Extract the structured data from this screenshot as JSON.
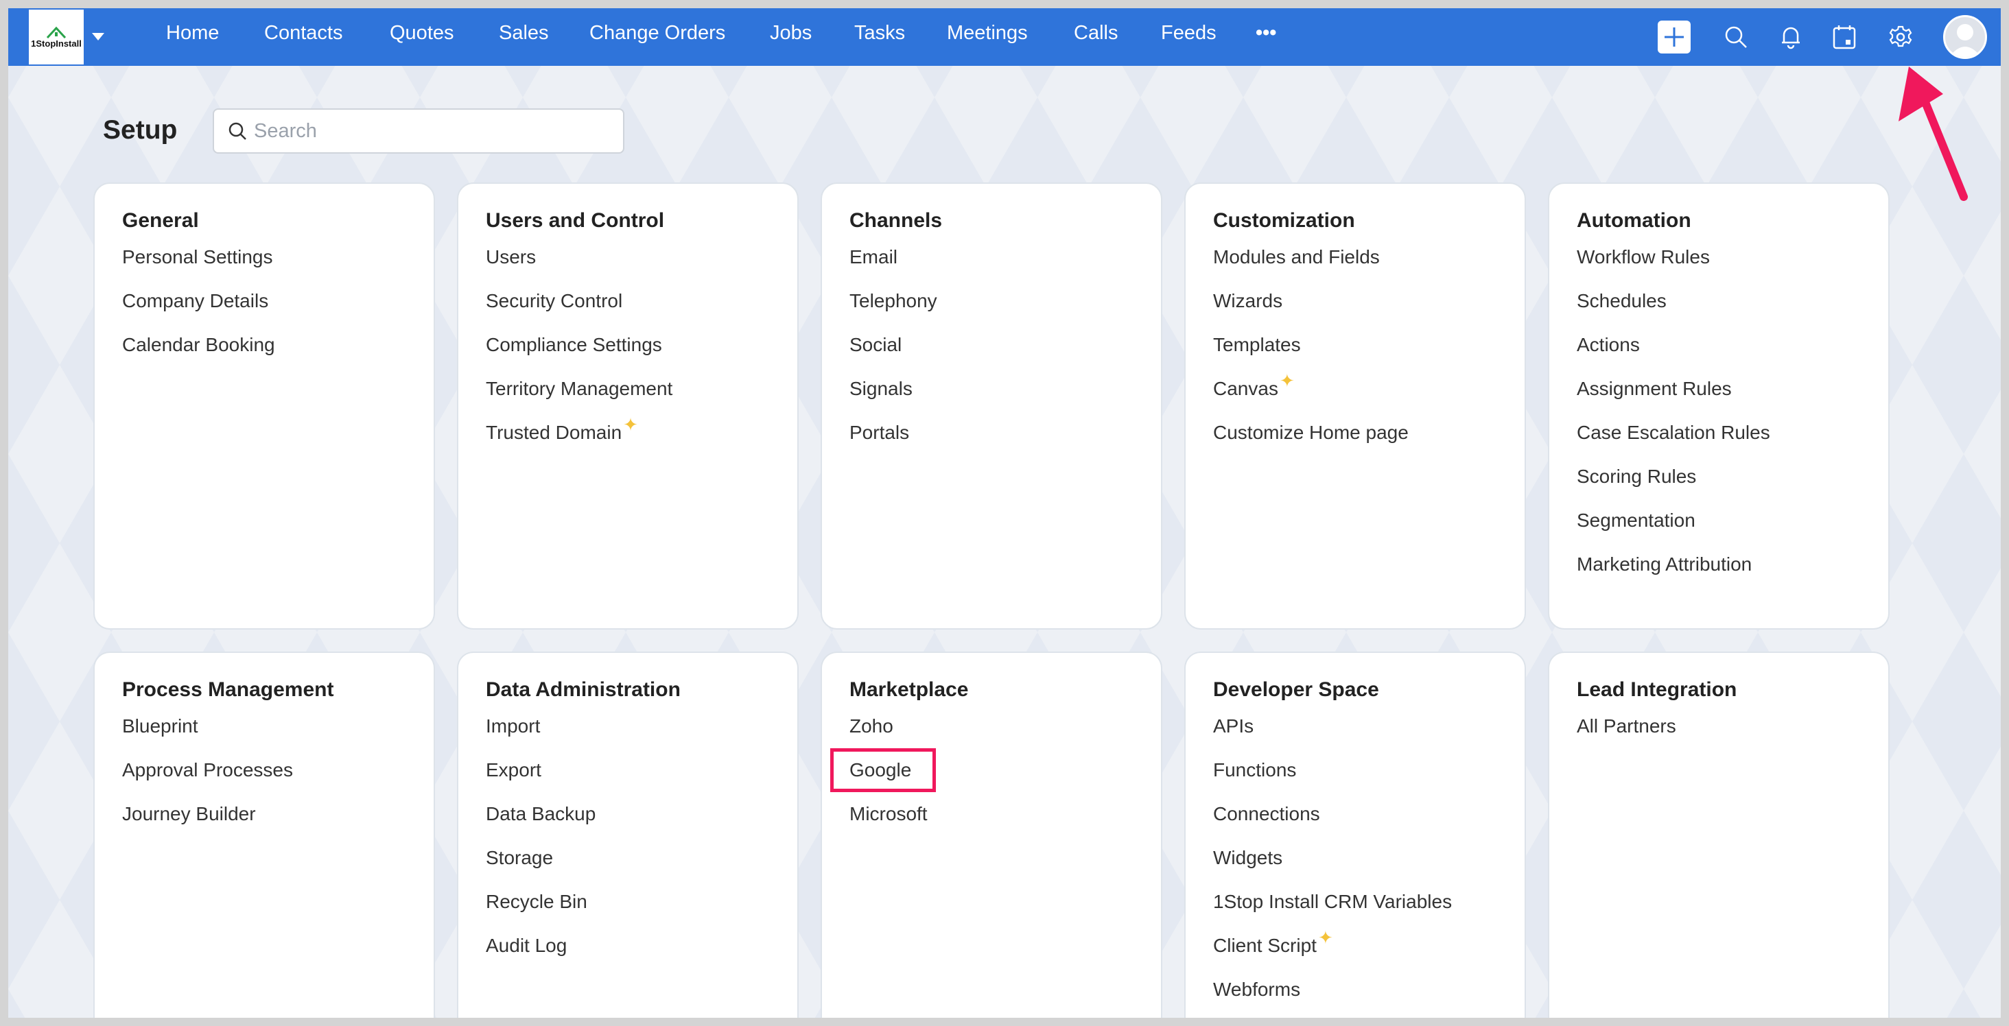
{
  "nav": {
    "logo_text": "1StopInstall",
    "items": [
      "Home",
      "Contacts",
      "Quotes",
      "Sales",
      "Change Orders",
      "Jobs",
      "Tasks",
      "Meetings",
      "Calls",
      "Feeds"
    ],
    "more": "•••",
    "icons": [
      "plus-icon",
      "search-icon",
      "bell-icon",
      "calendar-icon",
      "gear-icon",
      "avatar"
    ]
  },
  "page": {
    "title": "Setup",
    "search_placeholder": "Search"
  },
  "colors": {
    "nav": "#2f74da",
    "highlight": "#f0185c",
    "sparkle": "#f4c23a"
  },
  "cards": [
    {
      "title": "General",
      "items": [
        "Personal Settings",
        "Company Details",
        "Calendar Booking"
      ]
    },
    {
      "title": "Users and Control",
      "items": [
        "Users",
        "Security Control",
        "Compliance Settings",
        "Territory Management",
        "Trusted Domain"
      ],
      "sparkle": [
        4
      ]
    },
    {
      "title": "Channels",
      "items": [
        "Email",
        "Telephony",
        "Social",
        "Signals",
        "Portals"
      ]
    },
    {
      "title": "Customization",
      "items": [
        "Modules and Fields",
        "Wizards",
        "Templates",
        "Canvas",
        "Customize Home page"
      ],
      "sparkle": [
        3
      ]
    },
    {
      "title": "Automation",
      "items": [
        "Workflow Rules",
        "Schedules",
        "Actions",
        "Assignment Rules",
        "Case Escalation Rules",
        "Scoring Rules",
        "Segmentation",
        "Marketing Attribution"
      ]
    },
    {
      "title": "Process Management",
      "items": [
        "Blueprint",
        "Approval Processes",
        "Journey Builder"
      ]
    },
    {
      "title": "Data Administration",
      "items": [
        "Import",
        "Export",
        "Data Backup",
        "Storage",
        "Recycle Bin",
        "Audit Log"
      ]
    },
    {
      "title": "Marketplace",
      "items": [
        "Zoho",
        "Google",
        "Microsoft"
      ],
      "highlight": 1
    },
    {
      "title": "Developer Space",
      "items": [
        "APIs",
        "Functions",
        "Connections",
        "Widgets",
        "1Stop Install CRM Variables",
        "Client Script",
        "Webforms"
      ],
      "sparkle": [
        5
      ]
    },
    {
      "title": "Lead Integration",
      "items": [
        "All Partners"
      ]
    }
  ]
}
